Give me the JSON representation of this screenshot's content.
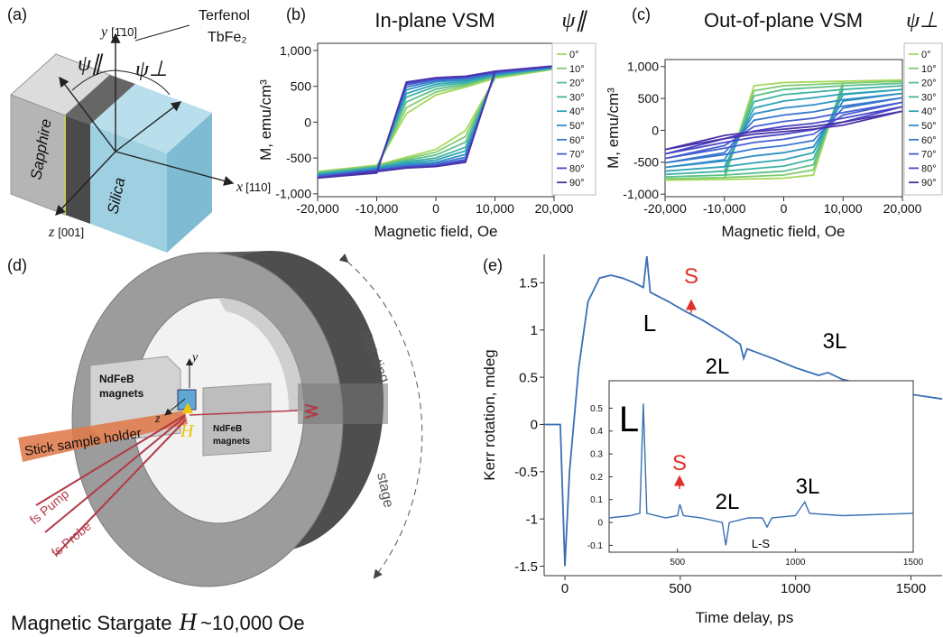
{
  "chart_data": [
    {
      "type": "line",
      "label": "(b)",
      "title": "In-plane VSM",
      "legend_title": "ψ∥",
      "xlabel": "Magnetic field, Oe",
      "ylabel": "M, emu/cm³",
      "x": [
        -20000,
        -10000,
        -5000,
        0,
        5000,
        10000,
        20000,
        10000,
        5000,
        0,
        -5000,
        -10000,
        -20000
      ],
      "xlim": [
        -20000,
        20000
      ],
      "ylim": [
        -1040,
        1100
      ],
      "xticks": [
        {
          "value": -20000,
          "label": "-20,000"
        },
        {
          "value": -10000,
          "label": "-10,000"
        },
        0,
        {
          "value": 10000,
          "label": "10,000"
        },
        {
          "value": 20000,
          "label": "20,000"
        }
      ],
      "yticks": [
        {
          "value": -1000,
          "label": "-1,000"
        },
        -500,
        0,
        500,
        {
          "value": 1000,
          "label": "1,000"
        }
      ],
      "series": [
        {
          "name": "0°",
          "color": "#a6d85b",
          "values": [
            -690,
            -600,
            -490,
            -380,
            -120,
            610,
            740,
            610,
            490,
            380,
            120,
            -610,
            -690
          ]
        },
        {
          "name": "10°",
          "color": "#7fcc6f",
          "values": [
            -700,
            -610,
            -510,
            -420,
            -200,
            630,
            745,
            630,
            510,
            420,
            200,
            -630,
            -700
          ]
        },
        {
          "name": "20°",
          "color": "#5cc08a",
          "values": [
            -710,
            -620,
            -530,
            -460,
            -280,
            640,
            750,
            640,
            530,
            460,
            280,
            -640,
            -710
          ]
        },
        {
          "name": "30°",
          "color": "#3fb3a0",
          "values": [
            -720,
            -630,
            -550,
            -500,
            -350,
            650,
            755,
            650,
            550,
            500,
            350,
            -650,
            -720
          ]
        },
        {
          "name": "40°",
          "color": "#2ea3b5",
          "values": [
            -730,
            -640,
            -570,
            -530,
            -400,
            660,
            760,
            660,
            570,
            530,
            400,
            -660,
            -730
          ]
        },
        {
          "name": "50°",
          "color": "#2f8fc4",
          "values": [
            -740,
            -650,
            -590,
            -560,
            -450,
            670,
            765,
            670,
            590,
            560,
            450,
            -670,
            -740
          ]
        },
        {
          "name": "60°",
          "color": "#3a77cf",
          "values": [
            -750,
            -660,
            -610,
            -580,
            -490,
            680,
            770,
            680,
            610,
            580,
            490,
            -680,
            -750
          ]
        },
        {
          "name": "70°",
          "color": "#465ed2",
          "values": [
            -760,
            -670,
            -620,
            -600,
            -520,
            690,
            775,
            690,
            620,
            600,
            520,
            -690,
            -760
          ]
        },
        {
          "name": "80°",
          "color": "#4b46c8",
          "values": [
            -770,
            -680,
            -630,
            -610,
            -540,
            700,
            780,
            700,
            630,
            610,
            540,
            -700,
            -770
          ]
        },
        {
          "name": "90°",
          "color": "#4a33a8",
          "values": [
            -780,
            -690,
            -640,
            -620,
            -560,
            710,
            785,
            710,
            640,
            620,
            560,
            -710,
            -780
          ]
        }
      ]
    },
    {
      "type": "line",
      "label": "(c)",
      "title": "Out-of-plane VSM",
      "legend_title": "ψ⊥",
      "xlabel": "Magnetic field, Oe",
      "ylabel": "M, emu/cm³",
      "x": [
        -20000,
        -10000,
        -5000,
        0,
        5000,
        10000,
        20000,
        10000,
        5000,
        0,
        -5000,
        -10000,
        -20000
      ],
      "xlim": [
        -20000,
        20000
      ],
      "ylim": [
        -1040,
        1110
      ],
      "xticks": [
        {
          "value": -20000,
          "label": "-20,000"
        },
        {
          "value": -10000,
          "label": "-10,000"
        },
        0,
        {
          "value": 10000,
          "label": "10,000"
        },
        {
          "value": 20000,
          "label": "20,000"
        }
      ],
      "yticks": [
        {
          "value": -1000,
          "label": "-1,000"
        },
        -500,
        0,
        500,
        {
          "value": 1000,
          "label": "1,000"
        }
      ],
      "series": [
        {
          "name": "0°",
          "color": "#a6d85b",
          "values": [
            -780,
            -770,
            -760,
            -750,
            -700,
            770,
            790,
            770,
            760,
            750,
            700,
            -770,
            -780
          ]
        },
        {
          "name": "10°",
          "color": "#7fcc6f",
          "values": [
            -760,
            -740,
            -720,
            -700,
            -620,
            740,
            770,
            740,
            720,
            700,
            620,
            -740,
            -760
          ]
        },
        {
          "name": "20°",
          "color": "#5cc08a",
          "values": [
            -730,
            -700,
            -670,
            -640,
            -540,
            700,
            740,
            700,
            670,
            640,
            540,
            -700,
            -730
          ]
        },
        {
          "name": "30°",
          "color": "#3fb3a0",
          "values": [
            -690,
            -640,
            -600,
            -560,
            -450,
            640,
            700,
            640,
            600,
            560,
            450,
            -640,
            -690
          ]
        },
        {
          "name": "40°",
          "color": "#2ea3b5",
          "values": [
            -640,
            -570,
            -510,
            -460,
            -350,
            560,
            640,
            570,
            510,
            460,
            350,
            -570,
            -640
          ]
        },
        {
          "name": "50°",
          "color": "#2f8fc4",
          "values": [
            -580,
            -480,
            -400,
            -350,
            -260,
            460,
            580,
            480,
            400,
            350,
            260,
            -460,
            -580
          ]
        },
        {
          "name": "60°",
          "color": "#3a77cf",
          "values": [
            -510,
            -380,
            -290,
            -240,
            -160,
            350,
            510,
            380,
            290,
            240,
            160,
            -350,
            -510
          ]
        },
        {
          "name": "70°",
          "color": "#465ed2",
          "values": [
            -440,
            -280,
            -190,
            -140,
            -60,
            240,
            440,
            280,
            190,
            140,
            60,
            -240,
            -440
          ]
        },
        {
          "name": "80°",
          "color": "#4b46c8",
          "values": [
            -370,
            -190,
            -110,
            -60,
            10,
            130,
            370,
            190,
            110,
            60,
            -10,
            -130,
            -370
          ]
        },
        {
          "name": "90°",
          "color": "#4a33a8",
          "values": [
            -300,
            -130,
            -60,
            -20,
            20,
            80,
            300,
            130,
            60,
            20,
            -20,
            -80,
            -300
          ]
        }
      ]
    },
    {
      "type": "line",
      "label": "(e)",
      "xlabel": "Time delay, ps",
      "ylabel": "Kerr rotation, mdeg",
      "x": [
        -90,
        -20,
        0,
        20,
        60,
        100,
        150,
        200,
        250,
        300,
        340,
        355,
        370,
        450,
        520,
        600,
        700,
        760,
        775,
        790,
        900,
        1000,
        1100,
        1140,
        1200,
        1300,
        1400,
        1500,
        1635
      ],
      "xlim": [
        -90,
        1635
      ],
      "ylim": [
        -1.6,
        1.8
      ],
      "xticks": [
        0,
        500,
        1000,
        1500
      ],
      "yticks": [
        -1.5,
        -1,
        -0.5,
        0,
        0.5,
        1,
        1.5
      ],
      "series": [
        {
          "color": "#3a6fb5",
          "values": [
            0,
            0,
            -1.5,
            -0.5,
            0.6,
            1.3,
            1.55,
            1.58,
            1.55,
            1.5,
            1.45,
            1.78,
            1.4,
            1.3,
            1.2,
            1.1,
            0.95,
            0.85,
            0.7,
            0.8,
            0.7,
            0.6,
            0.52,
            0.55,
            0.48,
            0.42,
            0.37,
            0.32,
            0.27
          ]
        }
      ],
      "annotations": [
        {
          "text": "L",
          "color": "#000000"
        },
        {
          "text": "S",
          "color": "#e0302a"
        },
        {
          "text": "2L",
          "color": "#000000"
        },
        {
          "text": "3L",
          "color": "#000000"
        }
      ]
    },
    {
      "type": "line",
      "x": [
        210,
        300,
        340,
        355,
        370,
        450,
        500,
        510,
        525,
        600,
        690,
        705,
        720,
        800,
        860,
        880,
        900,
        1000,
        1040,
        1060,
        1200,
        1500
      ],
      "xlim": [
        210,
        1500
      ],
      "ylim": [
        -0.13,
        0.62
      ],
      "xticks": [
        500,
        1000,
        1500
      ],
      "yticks": [
        -0.1,
        0,
        0.1,
        0.2,
        0.3,
        0.4,
        0.5
      ],
      "series": [
        {
          "color": "#3a6fb5",
          "values": [
            0.02,
            0.03,
            0.04,
            0.52,
            0.04,
            0.02,
            0.03,
            0.08,
            0.03,
            0.02,
            0,
            -0.1,
            0,
            0.02,
            0.02,
            -0.02,
            0.02,
            0.03,
            0.09,
            0.04,
            0.03,
            0.04
          ]
        }
      ],
      "annotations": [
        {
          "text": "L",
          "color": "#000000"
        },
        {
          "text": "S",
          "color": "#e0302a"
        },
        {
          "text": "2L",
          "color": "#000000"
        },
        {
          "text": "3L",
          "color": "#000000"
        },
        {
          "text": "L-S",
          "color": "#000000"
        }
      ]
    }
  ],
  "panel_a": {
    "label": "(a)",
    "axis_y": "y",
    "axis_y_dir": "[1̄10]",
    "terfenol": [
      "Terfenol",
      "TbFe₂"
    ],
    "psi_par": "ψ∥",
    "psi_perp": "ψ⊥",
    "sapphire": "Sapphire",
    "silica": "Silica",
    "axis_x": "x",
    "axis_x_dir": "[110]",
    "axis_z": "z",
    "axis_z_dir": "[001]"
  },
  "panel_d": {
    "label": "(d)",
    "magnets_left": [
      "NdFeB",
      "magnets"
    ],
    "magnets_right": [
      "NdFeB",
      "magnets"
    ],
    "holder": "Stick sample holder",
    "axis_y": "y",
    "axis_z": "z",
    "field": "H",
    "rotating": "Rotating",
    "stage": "stage",
    "pump": "fs Pump",
    "probe": "fs Probe",
    "caption": "Magnetic Stargate",
    "caption_field": "H",
    "caption_value": "~10,000 Oe"
  }
}
